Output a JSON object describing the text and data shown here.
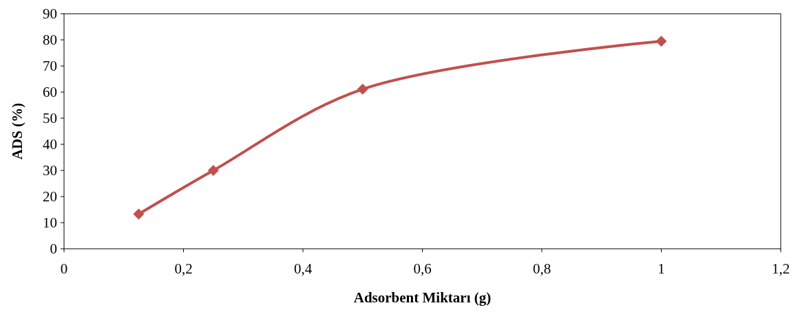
{
  "chart_data": {
    "type": "line",
    "xlabel": "Adsorbent Miktarı (g)",
    "ylabel": "ADS (%)",
    "x": [
      0.125,
      0.25,
      0.5,
      1
    ],
    "series": [
      {
        "color": "#c0504d",
        "values": [
          13.3,
          30,
          61.1,
          79.5
        ]
      }
    ],
    "xlim": [
      0,
      1.2
    ],
    "xticks": [
      0,
      {
        "value": 0.2,
        "label": "0,2"
      },
      {
        "value": 0.4,
        "label": "0,4"
      },
      {
        "value": 0.6,
        "label": "0,6"
      },
      {
        "value": 0.8,
        "label": "0,8"
      },
      1,
      {
        "value": 1.2,
        "label": "1,2"
      }
    ],
    "ylim": [
      0,
      90
    ],
    "yticks": [
      0,
      10,
      20,
      30,
      40,
      50,
      60,
      70,
      80,
      90
    ],
    "grid": false,
    "marker": "diamond",
    "line_style": "solid"
  }
}
